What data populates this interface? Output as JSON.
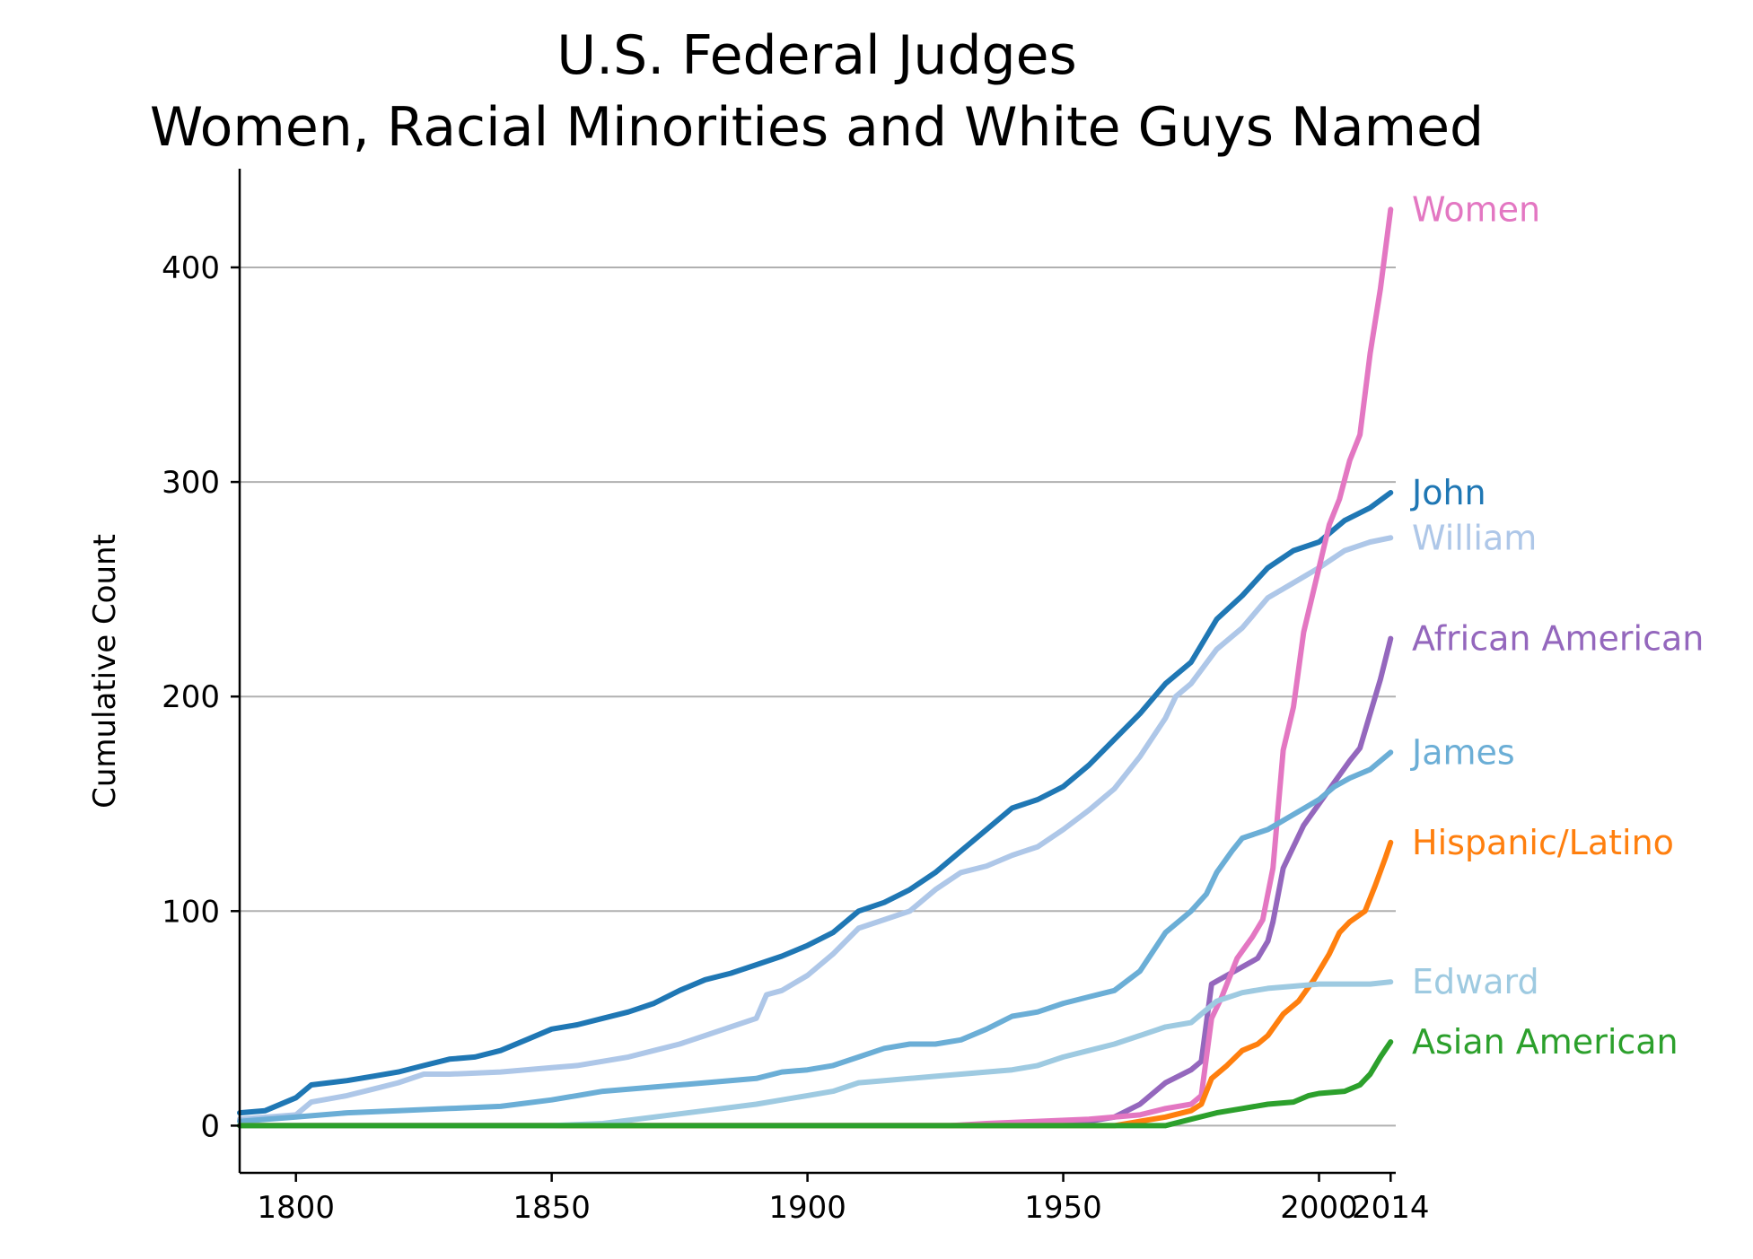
{
  "chart_data": {
    "type": "line",
    "title": "U.S. Federal Judges",
    "subtitle": "Women, Racial Minorities and White Guys Named",
    "xlabel": "",
    "ylabel": "Cumulative Count",
    "xlim": [
      1789,
      2015
    ],
    "ylim": [
      -22,
      446
    ],
    "grid": "horizontal",
    "legend": "direct labels at line ends",
    "x_ticks": [
      1800,
      1850,
      1900,
      1950,
      2000,
      2014
    ],
    "y_ticks": [
      0,
      100,
      200,
      300,
      400
    ],
    "series": [
      {
        "name": "John",
        "color": "#1f77b4",
        "points": [
          [
            1789,
            6
          ],
          [
            1794,
            7
          ],
          [
            1800,
            13
          ],
          [
            1803,
            19
          ],
          [
            1810,
            21
          ],
          [
            1815,
            23
          ],
          [
            1820,
            25
          ],
          [
            1825,
            28
          ],
          [
            1830,
            31
          ],
          [
            1835,
            32
          ],
          [
            1840,
            35
          ],
          [
            1845,
            40
          ],
          [
            1850,
            45
          ],
          [
            1855,
            47
          ],
          [
            1860,
            50
          ],
          [
            1865,
            53
          ],
          [
            1870,
            57
          ],
          [
            1875,
            63
          ],
          [
            1880,
            68
          ],
          [
            1885,
            71
          ],
          [
            1890,
            75
          ],
          [
            1895,
            79
          ],
          [
            1900,
            84
          ],
          [
            1905,
            90
          ],
          [
            1910,
            100
          ],
          [
            1915,
            104
          ],
          [
            1920,
            110
          ],
          [
            1925,
            118
          ],
          [
            1930,
            128
          ],
          [
            1935,
            138
          ],
          [
            1940,
            148
          ],
          [
            1945,
            152
          ],
          [
            1950,
            158
          ],
          [
            1955,
            168
          ],
          [
            1960,
            180
          ],
          [
            1965,
            192
          ],
          [
            1970,
            206
          ],
          [
            1975,
            216
          ],
          [
            1980,
            236
          ],
          [
            1985,
            247
          ],
          [
            1990,
            260
          ],
          [
            1995,
            268
          ],
          [
            2000,
            272
          ],
          [
            2005,
            282
          ],
          [
            2010,
            288
          ],
          [
            2014,
            295
          ]
        ]
      },
      {
        "name": "William",
        "color": "#aec7e8",
        "points": [
          [
            1789,
            3
          ],
          [
            1800,
            5
          ],
          [
            1803,
            11
          ],
          [
            1810,
            14
          ],
          [
            1815,
            17
          ],
          [
            1820,
            20
          ],
          [
            1825,
            24
          ],
          [
            1830,
            24
          ],
          [
            1840,
            25
          ],
          [
            1850,
            27
          ],
          [
            1855,
            28
          ],
          [
            1860,
            30
          ],
          [
            1865,
            32
          ],
          [
            1870,
            35
          ],
          [
            1875,
            38
          ],
          [
            1880,
            42
          ],
          [
            1885,
            46
          ],
          [
            1890,
            50
          ],
          [
            1892,
            61
          ],
          [
            1895,
            63
          ],
          [
            1900,
            70
          ],
          [
            1905,
            80
          ],
          [
            1910,
            92
          ],
          [
            1915,
            96
          ],
          [
            1920,
            100
          ],
          [
            1925,
            110
          ],
          [
            1930,
            118
          ],
          [
            1935,
            121
          ],
          [
            1940,
            126
          ],
          [
            1945,
            130
          ],
          [
            1950,
            138
          ],
          [
            1955,
            147
          ],
          [
            1960,
            157
          ],
          [
            1965,
            172
          ],
          [
            1970,
            190
          ],
          [
            1972,
            200
          ],
          [
            1975,
            206
          ],
          [
            1980,
            222
          ],
          [
            1985,
            232
          ],
          [
            1990,
            246
          ],
          [
            1995,
            253
          ],
          [
            2000,
            260
          ],
          [
            2005,
            268
          ],
          [
            2010,
            272
          ],
          [
            2014,
            274
          ]
        ]
      },
      {
        "name": "African American",
        "color": "#9467bd",
        "points": [
          [
            1789,
            0
          ],
          [
            1945,
            0
          ],
          [
            1955,
            2
          ],
          [
            1960,
            4
          ],
          [
            1965,
            10
          ],
          [
            1970,
            20
          ],
          [
            1975,
            26
          ],
          [
            1977,
            30
          ],
          [
            1979,
            66
          ],
          [
            1982,
            70
          ],
          [
            1985,
            74
          ],
          [
            1988,
            78
          ],
          [
            1990,
            86
          ],
          [
            1991,
            95
          ],
          [
            1993,
            120
          ],
          [
            1995,
            130
          ],
          [
            1997,
            140
          ],
          [
            2000,
            150
          ],
          [
            2003,
            160
          ],
          [
            2006,
            170
          ],
          [
            2008,
            176
          ],
          [
            2010,
            192
          ],
          [
            2012,
            208
          ],
          [
            2014,
            227
          ]
        ]
      },
      {
        "name": "Women",
        "color": "#e377c2",
        "points": [
          [
            1789,
            0
          ],
          [
            1928,
            0
          ],
          [
            1935,
            1
          ],
          [
            1945,
            2
          ],
          [
            1955,
            3
          ],
          [
            1965,
            5
          ],
          [
            1970,
            8
          ],
          [
            1975,
            10
          ],
          [
            1977,
            14
          ],
          [
            1979,
            50
          ],
          [
            1981,
            60
          ],
          [
            1984,
            78
          ],
          [
            1987,
            88
          ],
          [
            1989,
            96
          ],
          [
            1991,
            120
          ],
          [
            1993,
            175
          ],
          [
            1995,
            195
          ],
          [
            1997,
            230
          ],
          [
            2000,
            260
          ],
          [
            2002,
            280
          ],
          [
            2004,
            292
          ],
          [
            2006,
            310
          ],
          [
            2008,
            322
          ],
          [
            2010,
            360
          ],
          [
            2012,
            390
          ],
          [
            2014,
            427
          ]
        ]
      },
      {
        "name": "James",
        "color": "#6baed6",
        "points": [
          [
            1789,
            2
          ],
          [
            1800,
            4
          ],
          [
            1810,
            6
          ],
          [
            1820,
            7
          ],
          [
            1830,
            8
          ],
          [
            1840,
            9
          ],
          [
            1850,
            12
          ],
          [
            1855,
            14
          ],
          [
            1860,
            16
          ],
          [
            1870,
            18
          ],
          [
            1880,
            20
          ],
          [
            1890,
            22
          ],
          [
            1895,
            25
          ],
          [
            1900,
            26
          ],
          [
            1905,
            28
          ],
          [
            1910,
            32
          ],
          [
            1915,
            36
          ],
          [
            1920,
            38
          ],
          [
            1925,
            38
          ],
          [
            1930,
            40
          ],
          [
            1935,
            45
          ],
          [
            1940,
            51
          ],
          [
            1945,
            53
          ],
          [
            1950,
            57
          ],
          [
            1955,
            60
          ],
          [
            1960,
            63
          ],
          [
            1965,
            72
          ],
          [
            1970,
            90
          ],
          [
            1975,
            100
          ],
          [
            1978,
            108
          ],
          [
            1980,
            118
          ],
          [
            1983,
            128
          ],
          [
            1985,
            134
          ],
          [
            1990,
            138
          ],
          [
            1995,
            145
          ],
          [
            2000,
            152
          ],
          [
            2003,
            158
          ],
          [
            2006,
            162
          ],
          [
            2010,
            166
          ],
          [
            2014,
            174
          ]
        ]
      },
      {
        "name": "Hispanic/Latino",
        "color": "#ff7f0e",
        "points": [
          [
            1789,
            0
          ],
          [
            1960,
            0
          ],
          [
            1965,
            2
          ],
          [
            1970,
            4
          ],
          [
            1975,
            7
          ],
          [
            1977,
            10
          ],
          [
            1979,
            22
          ],
          [
            1982,
            28
          ],
          [
            1985,
            35
          ],
          [
            1988,
            38
          ],
          [
            1990,
            42
          ],
          [
            1993,
            52
          ],
          [
            1996,
            58
          ],
          [
            1999,
            68
          ],
          [
            2002,
            80
          ],
          [
            2004,
            90
          ],
          [
            2006,
            95
          ],
          [
            2009,
            100
          ],
          [
            2011,
            112
          ],
          [
            2013,
            125
          ],
          [
            2014,
            132
          ]
        ]
      },
      {
        "name": "Edward",
        "color": "#9ecae1",
        "points": [
          [
            1789,
            0
          ],
          [
            1850,
            0
          ],
          [
            1860,
            1
          ],
          [
            1870,
            4
          ],
          [
            1880,
            7
          ],
          [
            1890,
            10
          ],
          [
            1895,
            12
          ],
          [
            1900,
            14
          ],
          [
            1905,
            16
          ],
          [
            1910,
            20
          ],
          [
            1915,
            21
          ],
          [
            1920,
            22
          ],
          [
            1925,
            23
          ],
          [
            1930,
            24
          ],
          [
            1935,
            25
          ],
          [
            1940,
            26
          ],
          [
            1945,
            28
          ],
          [
            1950,
            32
          ],
          [
            1955,
            35
          ],
          [
            1960,
            38
          ],
          [
            1965,
            42
          ],
          [
            1970,
            46
          ],
          [
            1975,
            48
          ],
          [
            1980,
            58
          ],
          [
            1985,
            62
          ],
          [
            1990,
            64
          ],
          [
            1995,
            65
          ],
          [
            2000,
            66
          ],
          [
            2005,
            66
          ],
          [
            2010,
            66
          ],
          [
            2014,
            67
          ]
        ]
      },
      {
        "name": "Asian American",
        "color": "#2ca02c",
        "points": [
          [
            1789,
            0
          ],
          [
            1970,
            0
          ],
          [
            1975,
            3
          ],
          [
            1980,
            6
          ],
          [
            1985,
            8
          ],
          [
            1990,
            10
          ],
          [
            1995,
            11
          ],
          [
            1998,
            14
          ],
          [
            2000,
            15
          ],
          [
            2005,
            16
          ],
          [
            2008,
            19
          ],
          [
            2010,
            24
          ],
          [
            2012,
            32
          ],
          [
            2014,
            39
          ]
        ]
      }
    ]
  }
}
